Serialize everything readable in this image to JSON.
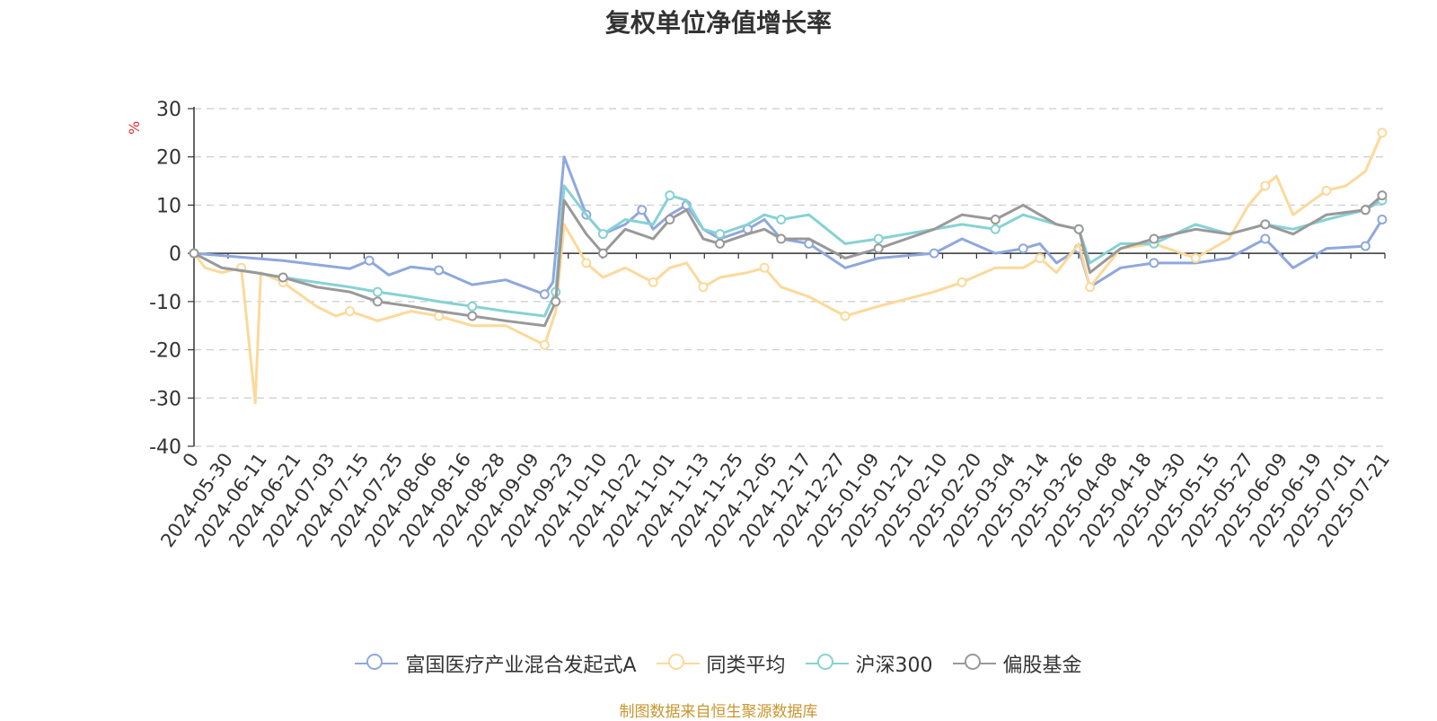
{
  "title": "复权单位净值增长率",
  "unit_label": "%",
  "source": "制图数据来自恒生聚源数据库",
  "chart_data": {
    "type": "line",
    "title": "复权单位净值增长率",
    "ylabel": "%",
    "ylim": [
      -40,
      30
    ],
    "yticks": [
      30,
      20,
      10,
      0,
      -10,
      -20,
      -30,
      -40
    ],
    "grid": true,
    "legend_position": "bottom",
    "x_start": "2024-05-20",
    "x_end": "2025-07-22",
    "xtick_labels": [
      "0",
      "2024-05-30",
      "2024-06-11",
      "2024-06-21",
      "2024-07-03",
      "2024-07-15",
      "2024-07-25",
      "2024-08-06",
      "2024-08-16",
      "2024-08-28",
      "2024-09-09",
      "2024-09-23",
      "2024-10-10",
      "2024-10-22",
      "2024-11-01",
      "2024-11-13",
      "2024-11-25",
      "2024-12-05",
      "2024-12-17",
      "2024-12-27",
      "2025-01-09",
      "2025-01-21",
      "2025-02-10",
      "2025-02-20",
      "2025-03-04",
      "2025-03-14",
      "2025-03-26",
      "2025-04-08",
      "2025-04-18",
      "2025-04-30",
      "2025-05-15",
      "2025-05-27",
      "2025-06-09",
      "2025-06-19",
      "2025-07-01",
      "2025-07-21"
    ],
    "series": [
      {
        "name": "富国医疗产业混合发起式A",
        "color": "#8fa8dc",
        "points": [
          [
            "2024-05-20",
            0
          ],
          [
            "2024-06-21",
            -1.5
          ],
          [
            "2024-07-15",
            -3.2
          ],
          [
            "2024-07-22",
            -1.5
          ],
          [
            "2024-07-29",
            -4.5
          ],
          [
            "2024-08-06",
            -2.8
          ],
          [
            "2024-08-16",
            -3.5
          ],
          [
            "2024-08-28",
            -6.5
          ],
          [
            "2024-09-09",
            -5.5
          ],
          [
            "2024-09-23",
            -8.5
          ],
          [
            "2024-09-26",
            -6
          ],
          [
            "2024-09-30",
            20
          ],
          [
            "2024-10-08",
            8
          ],
          [
            "2024-10-14",
            4
          ],
          [
            "2024-10-22",
            6
          ],
          [
            "2024-10-28",
            9
          ],
          [
            "2024-11-01",
            5
          ],
          [
            "2024-11-07",
            8
          ],
          [
            "2024-11-13",
            10
          ],
          [
            "2024-11-19",
            5
          ],
          [
            "2024-11-25",
            3
          ],
          [
            "2024-12-05",
            5
          ],
          [
            "2024-12-11",
            7
          ],
          [
            "2024-12-17",
            3
          ],
          [
            "2024-12-27",
            2
          ],
          [
            "2025-01-09",
            -3
          ],
          [
            "2025-01-21",
            -1
          ],
          [
            "2025-02-10",
            0
          ],
          [
            "2025-02-20",
            3
          ],
          [
            "2025-03-04",
            0
          ],
          [
            "2025-03-14",
            1
          ],
          [
            "2025-03-20",
            2
          ],
          [
            "2025-03-26",
            -2
          ],
          [
            "2025-04-03",
            1
          ],
          [
            "2025-04-07",
            -7
          ],
          [
            "2025-04-18",
            -3
          ],
          [
            "2025-04-30",
            -2
          ],
          [
            "2025-05-15",
            -2
          ],
          [
            "2025-05-27",
            -1
          ],
          [
            "2025-06-09",
            3
          ],
          [
            "2025-06-19",
            -3
          ],
          [
            "2025-07-01",
            1
          ],
          [
            "2025-07-15",
            1.5
          ],
          [
            "2025-07-21",
            7
          ]
        ]
      },
      {
        "name": "同类平均",
        "color": "#fcd99a",
        "points": [
          [
            "2024-05-20",
            0
          ],
          [
            "2024-05-24",
            -3
          ],
          [
            "2024-05-30",
            -4
          ],
          [
            "2024-06-06",
            -3
          ],
          [
            "2024-06-11",
            -31
          ],
          [
            "2024-06-13",
            -4
          ],
          [
            "2024-06-21",
            -6
          ],
          [
            "2024-07-03",
            -11
          ],
          [
            "2024-07-10",
            -13
          ],
          [
            "2024-07-15",
            -12
          ],
          [
            "2024-07-25",
            -14
          ],
          [
            "2024-08-06",
            -12
          ],
          [
            "2024-08-16",
            -13
          ],
          [
            "2024-08-28",
            -15
          ],
          [
            "2024-09-09",
            -15
          ],
          [
            "2024-09-23",
            -19
          ],
          [
            "2024-09-27",
            -12
          ],
          [
            "2024-09-30",
            6
          ],
          [
            "2024-10-08",
            -2
          ],
          [
            "2024-10-14",
            -5
          ],
          [
            "2024-10-22",
            -3
          ],
          [
            "2024-11-01",
            -6
          ],
          [
            "2024-11-07",
            -3
          ],
          [
            "2024-11-13",
            -2
          ],
          [
            "2024-11-19",
            -7
          ],
          [
            "2024-11-25",
            -5
          ],
          [
            "2024-12-05",
            -4
          ],
          [
            "2024-12-11",
            -3
          ],
          [
            "2024-12-17",
            -7
          ],
          [
            "2024-12-27",
            -9
          ],
          [
            "2025-01-09",
            -13
          ],
          [
            "2025-01-21",
            -11
          ],
          [
            "2025-02-10",
            -8
          ],
          [
            "2025-02-20",
            -6
          ],
          [
            "2025-03-04",
            -3
          ],
          [
            "2025-03-14",
            -3
          ],
          [
            "2025-03-20",
            -1
          ],
          [
            "2025-03-26",
            -4
          ],
          [
            "2025-04-03",
            2
          ],
          [
            "2025-04-07",
            -7
          ],
          [
            "2025-04-18",
            1
          ],
          [
            "2025-04-30",
            2
          ],
          [
            "2025-05-15",
            -1
          ],
          [
            "2025-05-27",
            3
          ],
          [
            "2025-06-03",
            10
          ],
          [
            "2025-06-09",
            14
          ],
          [
            "2025-06-13",
            16
          ],
          [
            "2025-06-19",
            8
          ],
          [
            "2025-07-01",
            13
          ],
          [
            "2025-07-08",
            14
          ],
          [
            "2025-07-15",
            17
          ],
          [
            "2025-07-21",
            25
          ]
        ]
      },
      {
        "name": "沪深300",
        "color": "#86d2d4",
        "points": [
          [
            "2024-05-20",
            0
          ],
          [
            "2024-05-30",
            -3
          ],
          [
            "2024-06-11",
            -4
          ],
          [
            "2024-06-21",
            -5
          ],
          [
            "2024-07-03",
            -6
          ],
          [
            "2024-07-15",
            -7
          ],
          [
            "2024-07-25",
            -8
          ],
          [
            "2024-08-06",
            -9
          ],
          [
            "2024-08-16",
            -10
          ],
          [
            "2024-08-28",
            -11
          ],
          [
            "2024-09-09",
            -12
          ],
          [
            "2024-09-23",
            -13
          ],
          [
            "2024-09-27",
            -8
          ],
          [
            "2024-09-30",
            14
          ],
          [
            "2024-10-08",
            8
          ],
          [
            "2024-10-14",
            4
          ],
          [
            "2024-10-22",
            7
          ],
          [
            "2024-11-01",
            6
          ],
          [
            "2024-11-07",
            12
          ],
          [
            "2024-11-13",
            11
          ],
          [
            "2024-11-19",
            5
          ],
          [
            "2024-11-25",
            4
          ],
          [
            "2024-12-05",
            6
          ],
          [
            "2024-12-11",
            8
          ],
          [
            "2024-12-17",
            7
          ],
          [
            "2024-12-27",
            8
          ],
          [
            "2025-01-09",
            2
          ],
          [
            "2025-01-21",
            3
          ],
          [
            "2025-02-10",
            5
          ],
          [
            "2025-02-20",
            6
          ],
          [
            "2025-03-04",
            5
          ],
          [
            "2025-03-14",
            8
          ],
          [
            "2025-03-26",
            6
          ],
          [
            "2025-04-03",
            5
          ],
          [
            "2025-04-07",
            -2
          ],
          [
            "2025-04-18",
            2
          ],
          [
            "2025-04-30",
            2
          ],
          [
            "2025-05-15",
            6
          ],
          [
            "2025-05-27",
            4
          ],
          [
            "2025-06-09",
            6
          ],
          [
            "2025-06-19",
            5
          ],
          [
            "2025-07-01",
            7
          ],
          [
            "2025-07-15",
            9
          ],
          [
            "2025-07-21",
            11
          ]
        ]
      },
      {
        "name": "偏股基金",
        "color": "#999999",
        "points": [
          [
            "2024-05-20",
            0
          ],
          [
            "2024-05-30",
            -3
          ],
          [
            "2024-06-11",
            -4
          ],
          [
            "2024-06-21",
            -5
          ],
          [
            "2024-07-03",
            -7
          ],
          [
            "2024-07-15",
            -8
          ],
          [
            "2024-07-25",
            -10
          ],
          [
            "2024-08-06",
            -11
          ],
          [
            "2024-08-16",
            -12
          ],
          [
            "2024-08-28",
            -13
          ],
          [
            "2024-09-09",
            -14
          ],
          [
            "2024-09-23",
            -15
          ],
          [
            "2024-09-27",
            -10
          ],
          [
            "2024-09-30",
            11
          ],
          [
            "2024-10-08",
            4
          ],
          [
            "2024-10-14",
            0
          ],
          [
            "2024-10-22",
            5
          ],
          [
            "2024-11-01",
            3
          ],
          [
            "2024-11-07",
            7
          ],
          [
            "2024-11-13",
            9
          ],
          [
            "2024-11-19",
            3
          ],
          [
            "2024-11-25",
            2
          ],
          [
            "2024-12-05",
            4
          ],
          [
            "2024-12-11",
            5
          ],
          [
            "2024-12-17",
            3
          ],
          [
            "2024-12-27",
            3
          ],
          [
            "2025-01-09",
            -1
          ],
          [
            "2025-01-21",
            1
          ],
          [
            "2025-02-10",
            5
          ],
          [
            "2025-02-20",
            8
          ],
          [
            "2025-03-04",
            7
          ],
          [
            "2025-03-14",
            10
          ],
          [
            "2025-03-26",
            6
          ],
          [
            "2025-04-03",
            5
          ],
          [
            "2025-04-07",
            -4
          ],
          [
            "2025-04-18",
            1
          ],
          [
            "2025-04-30",
            3
          ],
          [
            "2025-05-15",
            5
          ],
          [
            "2025-05-27",
            4
          ],
          [
            "2025-06-09",
            6
          ],
          [
            "2025-06-19",
            4
          ],
          [
            "2025-07-01",
            8
          ],
          [
            "2025-07-15",
            9
          ],
          [
            "2025-07-21",
            12
          ]
        ]
      }
    ]
  }
}
